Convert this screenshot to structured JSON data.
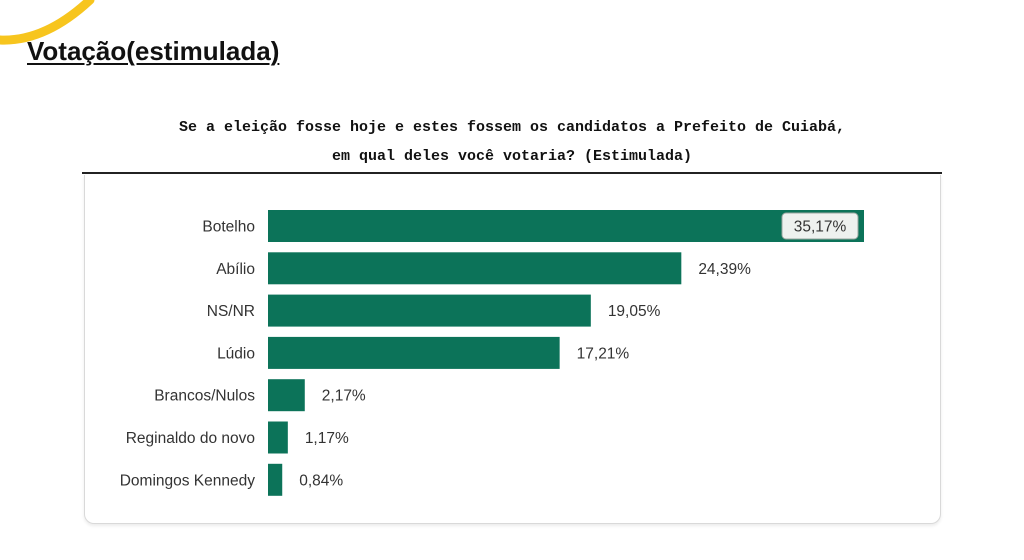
{
  "header": {
    "title": "Votação(estimulada)"
  },
  "question": {
    "line1": "Se a eleição fosse hoje e estes fossem os candidatos a Prefeito de Cuiabá,",
    "line2": "em qual deles você votaria? (Estimulada)"
  },
  "colors": {
    "bar": "#0c7359",
    "accent": "#f7c51e",
    "text": "#333333"
  },
  "chart_data": {
    "type": "bar",
    "orientation": "horizontal",
    "title": "",
    "xlabel": "",
    "ylabel": "",
    "categories": [
      "Botelho",
      "Abílio",
      "NS/NR",
      "Lúdio",
      "Brancos/Nulos",
      "Reginaldo do novo",
      "Domingos Kennedy"
    ],
    "values": [
      35.17,
      24.39,
      19.05,
      17.21,
      2.17,
      1.17,
      0.84
    ],
    "labels": [
      "35,17%",
      "24,39%",
      "19,05%",
      "17,21%",
      "2,17%",
      "1,17%",
      "0,84%"
    ],
    "unit": "%",
    "grid": false,
    "legend": "none",
    "highlighted_label_index": 0
  }
}
